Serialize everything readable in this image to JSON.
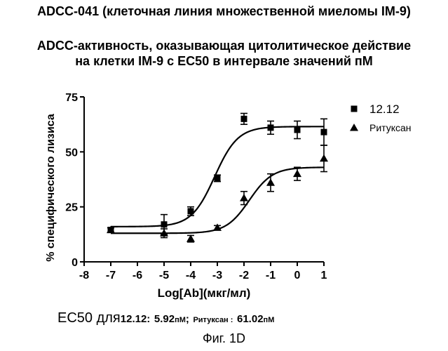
{
  "header": {
    "title": "ADCC-041 (клеточная линия множественной миеломы IM-9)",
    "subtitle_line1": "ADCC-активность, оказывающая цитолитическое действие",
    "subtitle_line2": "на клетки IM-9 с EC50 в интервале значений пМ"
  },
  "chart_data": {
    "type": "scatter",
    "xlabel": "Log[Ab](мкг/мл)",
    "ylabel": "% специфического лизиса",
    "xlim": [
      -8,
      1
    ],
    "ylim": [
      0,
      75
    ],
    "xticks": [
      -8,
      -7,
      -6,
      -5,
      -4,
      -3,
      -2,
      -1,
      0,
      1
    ],
    "yticks": [
      0,
      25,
      50,
      75
    ],
    "legend_position": "top-right",
    "series": [
      {
        "name": "12.12",
        "marker": "square",
        "points": [
          {
            "x": -7,
            "y": 14.5,
            "err": 1
          },
          {
            "x": -5,
            "y": 17,
            "err": 4.5
          },
          {
            "x": -4,
            "y": 23,
            "err": 2
          },
          {
            "x": -3,
            "y": 38,
            "err": 1.5
          },
          {
            "x": -2,
            "y": 65,
            "err": 2.5
          },
          {
            "x": -1,
            "y": 61,
            "err": 3
          },
          {
            "x": 0,
            "y": 60,
            "err": 4
          },
          {
            "x": 1,
            "y": 59,
            "err": 6
          }
        ],
        "fit": {
          "bottom": 16,
          "top": 61.5,
          "logEC50": -3.1,
          "hill": 1.0
        }
      },
      {
        "name": "Ритуксан",
        "marker": "triangle",
        "points": [
          {
            "x": -7,
            "y": 14.5,
            "err": 1
          },
          {
            "x": -5,
            "y": 13,
            "err": 2
          },
          {
            "x": -4,
            "y": 10.5,
            "err": 1.5
          },
          {
            "x": -3,
            "y": 15.5,
            "err": 1
          },
          {
            "x": -2,
            "y": 29,
            "err": 3
          },
          {
            "x": -1,
            "y": 36,
            "err": 4
          },
          {
            "x": 0,
            "y": 40,
            "err": 3
          },
          {
            "x": 1,
            "y": 47,
            "err": 6
          }
        ],
        "fit": {
          "bottom": 13,
          "top": 43,
          "logEC50": -1.8,
          "hill": 1.0
        }
      }
    ]
  },
  "footer": {
    "ec50_prefix": "EC50 для",
    "ec50_a_name": "12.12:",
    "ec50_a_value": "5.92",
    "ec50_unit": "пМ",
    "ec50_sep": ";",
    "ec50_b_name": "Ритуксан :",
    "ec50_b_value": "61.02",
    "figure_label": "Фиг. 1D"
  }
}
